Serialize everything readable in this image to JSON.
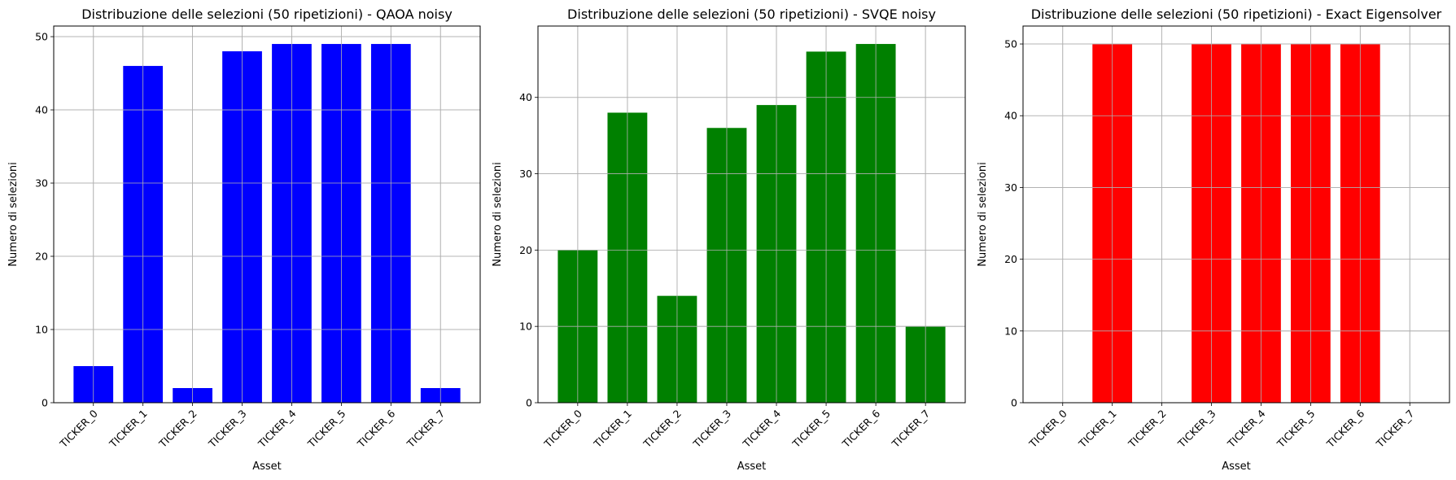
{
  "chart_data": [
    {
      "type": "bar",
      "title": "Distribuzione delle selezioni (50 ripetizioni) - QAOA noisy",
      "xlabel": "Asset",
      "ylabel": "Numero di selezioni",
      "categories": [
        "TICKER_0",
        "TICKER_1",
        "TICKER_2",
        "TICKER_3",
        "TICKER_4",
        "TICKER_5",
        "TICKER_6",
        "TICKER_7"
      ],
      "values": [
        5,
        46,
        2,
        48,
        49,
        49,
        49,
        2
      ],
      "ylim": [
        0,
        51.45
      ],
      "yticks": [
        0,
        10,
        20,
        30,
        40,
        50
      ],
      "color": "#0000ff",
      "grid": true
    },
    {
      "type": "bar",
      "title": "Distribuzione delle selezioni (50 ripetizioni) - SVQE noisy",
      "xlabel": "Asset",
      "ylabel": "Numero di selezioni",
      "categories": [
        "TICKER_0",
        "TICKER_1",
        "TICKER_2",
        "TICKER_3",
        "TICKER_4",
        "TICKER_5",
        "TICKER_6",
        "TICKER_7"
      ],
      "values": [
        20,
        38,
        14,
        36,
        39,
        46,
        47,
        10
      ],
      "ylim": [
        0,
        49.35
      ],
      "yticks": [
        0,
        10,
        20,
        30,
        40
      ],
      "color": "#008000",
      "grid": true
    },
    {
      "type": "bar",
      "title": "Distribuzione delle selezioni (50 ripetizioni) - Exact Eigensolver",
      "xlabel": "Asset",
      "ylabel": "Numero di selezioni",
      "categories": [
        "TICKER_0",
        "TICKER_1",
        "TICKER_2",
        "TICKER_3",
        "TICKER_4",
        "TICKER_5",
        "TICKER_6",
        "TICKER_7"
      ],
      "values": [
        0,
        50,
        0,
        50,
        50,
        50,
        50,
        0
      ],
      "ylim": [
        0,
        52.5
      ],
      "yticks": [
        0,
        10,
        20,
        30,
        40,
        50
      ],
      "color": "#ff0000",
      "grid": true
    }
  ]
}
